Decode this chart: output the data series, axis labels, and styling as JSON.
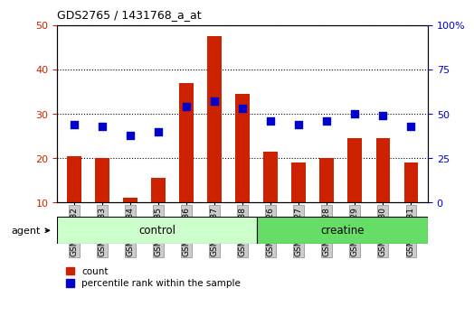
{
  "title": "GDS2765 / 1431768_a_at",
  "samples": [
    "GSM115532",
    "GSM115533",
    "GSM115534",
    "GSM115535",
    "GSM115536",
    "GSM115537",
    "GSM115538",
    "GSM115526",
    "GSM115527",
    "GSM115528",
    "GSM115529",
    "GSM115530",
    "GSM115531"
  ],
  "counts": [
    20.5,
    20.0,
    11.0,
    15.5,
    37.0,
    47.5,
    34.5,
    21.5,
    19.0,
    20.0,
    24.5,
    24.5,
    19.0
  ],
  "percentiles": [
    44,
    43,
    38,
    40,
    54,
    57,
    53,
    46,
    44,
    46,
    50,
    49,
    43
  ],
  "baseline": 10,
  "ylim_left": [
    10,
    50
  ],
  "ylim_right": [
    0,
    100
  ],
  "yticks_left": [
    10,
    20,
    30,
    40,
    50
  ],
  "yticks_right": [
    0,
    25,
    50,
    75,
    100
  ],
  "ctrl_count": 7,
  "creat_count": 6,
  "group_label": "agent",
  "ctrl_label": "control",
  "creat_label": "creatine",
  "ctrl_color": "#CCFFCC",
  "creat_color": "#66DD66",
  "bar_color": "#CC2200",
  "dot_color": "#0000CC",
  "bar_width": 0.5,
  "dot_size": 40,
  "tick_label_color_left": "#CC2200",
  "tick_label_color_right": "#0000CC",
  "legend_count_label": "count",
  "legend_pct_label": "percentile rank within the sample"
}
